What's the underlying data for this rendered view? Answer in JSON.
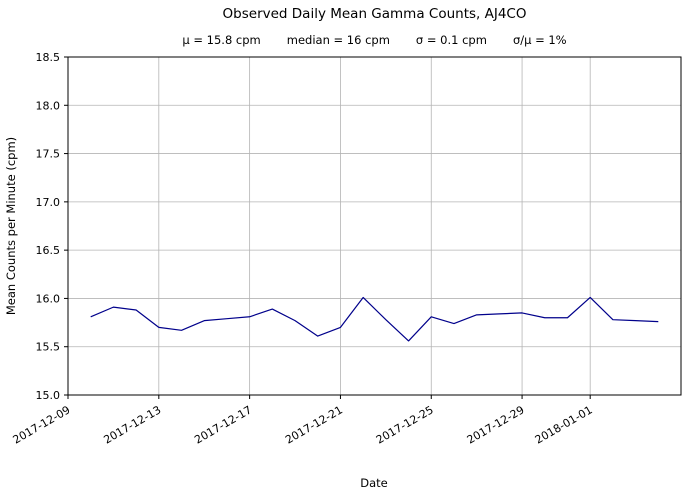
{
  "chart_data": {
    "type": "line",
    "title": "Observed Daily Mean Gamma Counts, AJ4CO",
    "stats": [
      "μ = 15.8 cpm",
      "median = 16 cpm",
      "σ = 0.1 cpm",
      "σ/μ = 1%"
    ],
    "xlabel": "Date",
    "ylabel": "Mean Counts per Minute (cpm)",
    "ylim": [
      15.0,
      18.5
    ],
    "y_ticks": [
      15.0,
      15.5,
      16.0,
      16.5,
      17.0,
      17.5,
      18.0,
      18.5
    ],
    "x_domain_days": [
      0,
      27
    ],
    "x_ticks": [
      {
        "day": 0,
        "label": "2017-12-09"
      },
      {
        "day": 4,
        "label": "2017-12-13"
      },
      {
        "day": 8,
        "label": "2017-12-17"
      },
      {
        "day": 12,
        "label": "2017-12-21"
      },
      {
        "day": 16,
        "label": "2017-12-25"
      },
      {
        "day": 20,
        "label": "2017-12-29"
      },
      {
        "day": 23,
        "label": "2018-01-01"
      }
    ],
    "grid": true,
    "legend": "none",
    "line_color": "#00008b",
    "grid_color": "#b4b4b4",
    "axis_color": "#000000",
    "series": [
      {
        "name": "daily-mean-gamma-counts",
        "dates": [
          "2017-12-10",
          "2017-12-11",
          "2017-12-12",
          "2017-12-13",
          "2017-12-14",
          "2017-12-15",
          "2017-12-16",
          "2017-12-17",
          "2017-12-18",
          "2017-12-19",
          "2017-12-20",
          "2017-12-21",
          "2017-12-22",
          "2017-12-23",
          "2017-12-24",
          "2017-12-25",
          "2017-12-26",
          "2017-12-27",
          "2017-12-28",
          "2017-12-29",
          "2017-12-30",
          "2017-12-31",
          "2018-01-01",
          "2018-01-02",
          "2018-01-03",
          "2018-01-04"
        ],
        "days": [
          1,
          2,
          3,
          4,
          5,
          6,
          7,
          8,
          9,
          10,
          11,
          12,
          13,
          14,
          15,
          16,
          17,
          18,
          19,
          20,
          21,
          22,
          23,
          24,
          25,
          26
        ],
        "values": [
          15.81,
          15.91,
          15.88,
          15.7,
          15.67,
          15.77,
          15.79,
          15.81,
          15.89,
          15.77,
          15.61,
          15.7,
          16.01,
          15.78,
          15.56,
          15.81,
          15.74,
          15.83,
          15.84,
          15.85,
          15.8,
          15.8,
          16.01,
          15.78,
          15.77,
          15.76
        ]
      }
    ]
  }
}
